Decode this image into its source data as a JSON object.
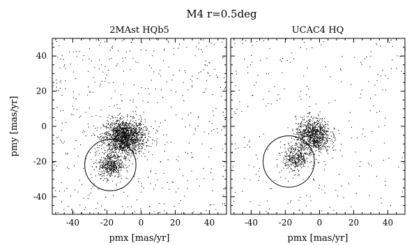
{
  "figure": {
    "title": "M4  r=0.5deg"
  },
  "chart_data": [
    {
      "type": "scatter",
      "title": "2MAst  HQb5",
      "xlabel": "pmx [mas/yr]",
      "ylabel": "pmy [mas/yr]",
      "xlim": [
        -52,
        50
      ],
      "ylim": [
        -50,
        50
      ],
      "x_ticks": [
        -40,
        -20,
        0,
        20,
        40
      ],
      "y_ticks": [
        -40,
        -20,
        0,
        20,
        40
      ],
      "grid": false,
      "clusters": [
        {
          "name": "",
          "center": [
            -10,
            -6
          ],
          "spread": [
            6,
            5
          ],
          "count": 1500
        },
        {
          "name": "",
          "center": [
            -18,
            -22
          ],
          "spread": [
            3.5,
            3.5
          ],
          "count": 400
        }
      ],
      "field_points": 500,
      "selection_circle": {
        "center": [
          -18,
          -22
        ],
        "radius": 15
      }
    },
    {
      "type": "scatter",
      "title": "UCAC4  HQ",
      "xlabel": "pmx [mas/yr]",
      "ylabel": "",
      "xlim": [
        -52,
        50
      ],
      "ylim": [
        -50,
        50
      ],
      "x_ticks": [
        -40,
        -20,
        0,
        20,
        40
      ],
      "y_ticks": [
        -40,
        -20,
        0,
        20,
        40
      ],
      "grid": false,
      "clusters": [
        {
          "name": "",
          "center": [
            -4,
            -5
          ],
          "spread": [
            5,
            5
          ],
          "count": 900
        },
        {
          "name": "",
          "center": [
            -14,
            -18
          ],
          "spread": [
            4,
            4
          ],
          "count": 350
        }
      ],
      "field_points": 250,
      "selection_circle": {
        "center": [
          -18,
          -20
        ],
        "radius": 15
      }
    }
  ],
  "colors": {
    "points": "#000000",
    "axes": "#000000",
    "background": "#ffffff"
  }
}
